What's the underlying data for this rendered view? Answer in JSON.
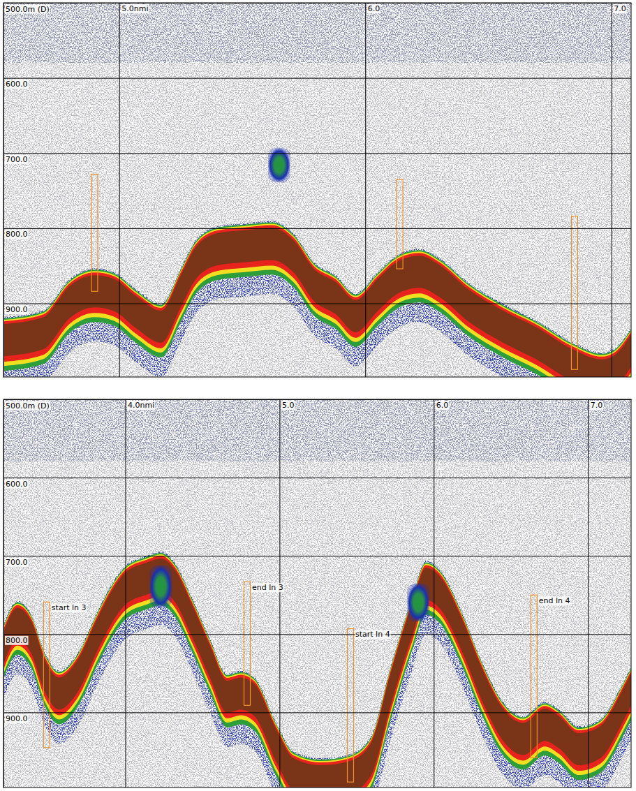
{
  "chart_data": [
    {
      "type": "echogram",
      "x": [
        4.53,
        4.69,
        4.8,
        4.9,
        4.98,
        5.07,
        5.17,
        5.25,
        5.31,
        5.4,
        5.51,
        5.62,
        5.71,
        5.79,
        5.88,
        5.96,
        6.05,
        6.13,
        6.22,
        6.3,
        6.42,
        6.56,
        6.7,
        6.84,
        6.96,
        7.01,
        7.08
      ],
      "values": [
        923,
        914,
        872,
        858,
        863,
        886,
        905,
        858,
        821,
        802,
        798,
        795,
        812,
        849,
        867,
        891,
        863,
        840,
        832,
        844,
        877,
        905,
        928,
        956,
        970,
        965,
        937
      ],
      "color": "#7a3418",
      "xlim": [
        4.53,
        7.08
      ],
      "ylim": [
        998,
        500
      ],
      "xticks": [
        {
          "value": 5,
          "label": "5.0nmi"
        },
        {
          "value": 6,
          "label": "6.0"
        },
        {
          "value": 7,
          "label": "7.0"
        }
      ],
      "yticks": [
        {
          "value": 500,
          "label": "500.0m (D)"
        },
        {
          "value": 600,
          "label": "600.0"
        },
        {
          "value": 700,
          "label": "700.0"
        },
        {
          "value": 800,
          "label": "800.0"
        },
        {
          "value": 900,
          "label": "900.0"
        }
      ],
      "grid": true,
      "markers": [
        {
          "x": 4.9,
          "top": 728,
          "bottom": 884
        },
        {
          "x": 6.14,
          "top": 735,
          "bottom": 854
        },
        {
          "x": 6.85,
          "top": 784,
          "bottom": 988
        }
      ],
      "schools": [
        {
          "x": 5.65,
          "top": 693,
          "bottom": 739
        }
      ]
    },
    {
      "type": "echogram",
      "x": [
        3.21,
        3.3,
        3.39,
        3.48,
        3.57,
        3.69,
        3.82,
        3.91,
        4.0,
        4.14,
        4.23,
        4.32,
        4.43,
        4.55,
        4.66,
        4.75,
        4.84,
        4.98,
        5.09,
        5.27,
        5.45,
        5.59,
        5.72,
        5.86,
        5.95,
        6.04,
        6.18,
        6.31,
        6.45,
        6.58,
        6.72,
        6.81,
        6.94,
        7.08,
        7.22,
        7.28
      ],
      "values": [
        793,
        762,
        779,
        829,
        851,
        829,
        775,
        741,
        717,
        704,
        699,
        713,
        757,
        811,
        855,
        851,
        860,
        918,
        954,
        963,
        958,
        936,
        846,
        757,
        711,
        722,
        775,
        838,
        891,
        909,
        891,
        900,
        922,
        913,
        869,
        846
      ],
      "color": "#7a3418",
      "xlim": [
        3.21,
        7.28
      ],
      "ylim": [
        996,
        500
      ],
      "xticks": [
        {
          "value": 4,
          "label": "4.0nmi"
        },
        {
          "value": 5,
          "label": "5.0"
        },
        {
          "value": 6,
          "label": "6.0"
        },
        {
          "value": 7,
          "label": "7.0"
        }
      ],
      "yticks": [
        {
          "value": 500,
          "label": "500.0m (D)"
        },
        {
          "value": 600,
          "label": "600.0"
        },
        {
          "value": 700,
          "label": "700.0"
        },
        {
          "value": 800,
          "label": "800.0"
        },
        {
          "value": 900,
          "label": "900.0"
        }
      ],
      "grid": true,
      "markers": [
        {
          "x": 3.49,
          "top": 759,
          "bottom": 945,
          "label": "start ln 3"
        },
        {
          "x": 4.79,
          "top": 733,
          "bottom": 891,
          "label": "end ln 3"
        },
        {
          "x": 5.46,
          "top": 793,
          "bottom": 989,
          "label": "start ln 4"
        },
        {
          "x": 6.65,
          "top": 750,
          "bottom": 958,
          "label": "end ln 4"
        }
      ],
      "schools": [
        {
          "x": 4.23,
          "top": 712,
          "bottom": 766
        },
        {
          "x": 5.9,
          "top": 735,
          "bottom": 784
        }
      ]
    }
  ]
}
